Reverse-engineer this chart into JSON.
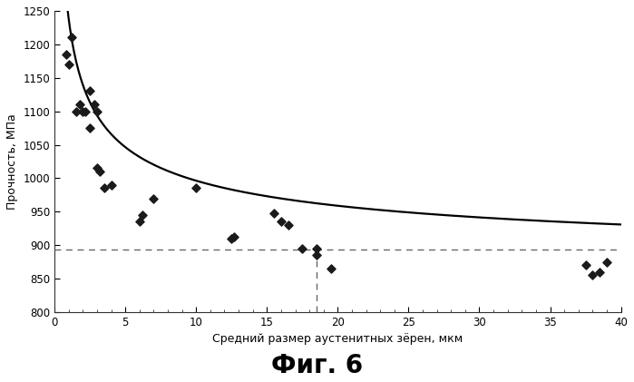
{
  "scatter_x": [
    0.8,
    1.0,
    1.2,
    1.5,
    1.8,
    2.0,
    2.2,
    2.5,
    2.5,
    2.8,
    3.0,
    3.0,
    3.2,
    3.5,
    4.0,
    6.0,
    6.2,
    7.0,
    10.0,
    12.5,
    12.7,
    15.5,
    16.0,
    16.5,
    17.5,
    18.5,
    18.5,
    19.5,
    37.5,
    38.0,
    38.5,
    39.0
  ],
  "scatter_y": [
    1185,
    1170,
    1210,
    1100,
    1110,
    1100,
    1100,
    1130,
    1075,
    1110,
    1100,
    1015,
    1010,
    985,
    990,
    935,
    945,
    970,
    985,
    910,
    912,
    948,
    935,
    930,
    895,
    885,
    895,
    865,
    870,
    855,
    860,
    875
  ],
  "hline_y": 893,
  "vline_x": 18.5,
  "curve_params": {
    "a": 848,
    "b": 390,
    "c": 0.42
  },
  "xlim": [
    0,
    40
  ],
  "ylim": [
    800,
    1250
  ],
  "xticks": [
    0,
    5,
    10,
    15,
    20,
    25,
    30,
    35,
    40
  ],
  "yticks": [
    800,
    850,
    900,
    950,
    1000,
    1050,
    1100,
    1150,
    1200,
    1250
  ],
  "xlabel": "Средний размер аустенитных зёрен, мкм",
  "ylabel": "Прочность, МПа",
  "figure_title": "Фиг. 6",
  "bg_color": "#ffffff",
  "scatter_color": "#1a1a1a",
  "curve_color": "#000000",
  "hline_color": "#666666",
  "vline_color": "#666666",
  "figsize": [
    6.99,
    4.21
  ],
  "dpi": 100
}
